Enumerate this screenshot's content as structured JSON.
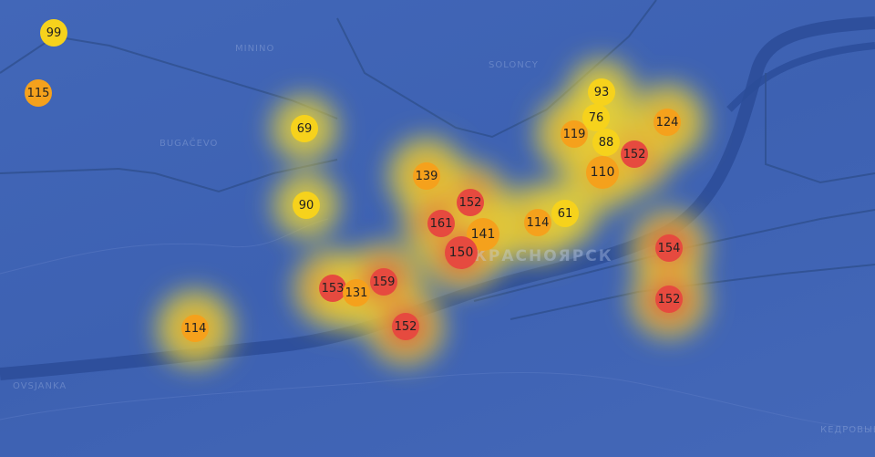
{
  "map": {
    "place_labels": [
      "Minino",
      "Solonсy",
      "Bugačevo",
      "Ovsjanka",
      "Кедровый"
    ],
    "city_label": "Красноярск",
    "colors": {
      "good": "#f6d21c",
      "moderate": "#f5a11c",
      "unhealthy": "#e64a3f",
      "water": "#2b4c98",
      "land": "#3f64b6"
    },
    "markers": [
      {
        "value": "99",
        "level": "good"
      },
      {
        "value": "115",
        "level": "moderate"
      },
      {
        "value": "69",
        "level": "good"
      },
      {
        "value": "90",
        "level": "good"
      },
      {
        "value": "139",
        "level": "moderate"
      },
      {
        "value": "152",
        "level": "unhealthy"
      },
      {
        "value": "161",
        "level": "unhealthy"
      },
      {
        "value": "141",
        "level": "moderate"
      },
      {
        "value": "150",
        "level": "unhealthy"
      },
      {
        "value": "114",
        "level": "moderate"
      },
      {
        "value": "61",
        "level": "good"
      },
      {
        "value": "93",
        "level": "good"
      },
      {
        "value": "76",
        "level": "good"
      },
      {
        "value": "119",
        "level": "moderate"
      },
      {
        "value": "88",
        "level": "good"
      },
      {
        "value": "152",
        "level": "unhealthy"
      },
      {
        "value": "110",
        "level": "moderate"
      },
      {
        "value": "124",
        "level": "moderate"
      },
      {
        "value": "154",
        "level": "unhealthy"
      },
      {
        "value": "152",
        "level": "unhealthy"
      },
      {
        "value": "153",
        "level": "unhealthy"
      },
      {
        "value": "131",
        "level": "moderate"
      },
      {
        "value": "159",
        "level": "unhealthy"
      },
      {
        "value": "152",
        "level": "unhealthy"
      },
      {
        "value": "114",
        "level": "moderate"
      }
    ]
  }
}
